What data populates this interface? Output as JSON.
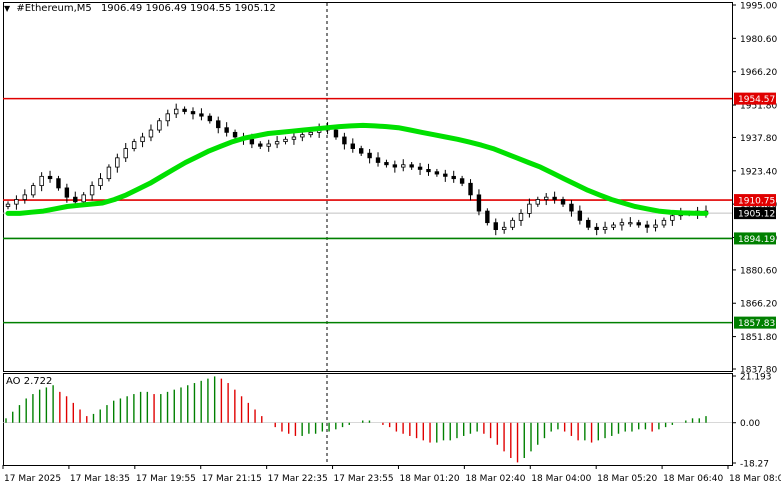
{
  "header": {
    "symbol": "#Ethereum,M5",
    "ohlc": "1906.49 1906.49 1904.55 1905.12"
  },
  "ao_header": {
    "label": "AO 2.722"
  },
  "chart_data": [
    {
      "type": "candlestick",
      "title": "#Ethereum,M5",
      "ylim": [
        1837.8,
        1995.0
      ],
      "y_ticks": [
        "1995.00",
        "1980.60",
        "1966.20",
        "1951.80",
        "1937.80",
        "1923.40",
        "1909.00",
        "1894.60",
        "1880.60",
        "1866.20",
        "1851.80",
        "1837.80"
      ],
      "x_ticks": [
        "17 Mar 2025",
        "17 Mar 18:35",
        "17 Mar 19:55",
        "17 Mar 21:15",
        "17 Mar 22:35",
        "17 Mar 23:55",
        "18 Mar 01:20",
        "18 Mar 02:40",
        "18 Mar 04:00",
        "18 Mar 05:20",
        "18 Mar 06:40",
        "18 Mar 08:00"
      ],
      "current_price": "1905.12",
      "close_series": [
        1909,
        1911,
        1913,
        1917,
        1921,
        1920,
        1916,
        1912,
        1910,
        1913,
        1917,
        1920,
        1925,
        1929,
        1933,
        1936,
        1938,
        1941,
        1945,
        1948,
        1950,
        1949,
        1948,
        1947,
        1945,
        1942,
        1940,
        1938,
        1937,
        1935,
        1934,
        1935,
        1936,
        1937,
        1938,
        1939,
        1940,
        1942,
        1941,
        1938,
        1935,
        1933,
        1931,
        1929,
        1927,
        1926,
        1925,
        1926,
        1925,
        1924,
        1923,
        1922,
        1921,
        1920,
        1918,
        1913,
        1906,
        1901,
        1898,
        1899,
        1902,
        1905,
        1909,
        1911,
        1912,
        1911,
        1909,
        1906,
        1902,
        1899,
        1898,
        1899,
        1900,
        1901,
        1901,
        1900,
        1899,
        1900,
        1902,
        1904,
        1905,
        1905,
        1906,
        1905
      ],
      "ma_line": {
        "color": "#00e000",
        "values": [
          1905.0,
          1905.0,
          1905.5,
          1906.0,
          1907.0,
          1908.0,
          1908.5,
          1909.0,
          1909.5,
          1911.0,
          1913.0,
          1915.5,
          1918.0,
          1921.0,
          1924.0,
          1927.0,
          1929.5,
          1932.0,
          1934.0,
          1936.0,
          1937.5,
          1938.5,
          1939.5,
          1940.0,
          1940.5,
          1941.0,
          1941.5,
          1942.0,
          1942.5,
          1942.8,
          1943.0,
          1942.8,
          1942.5,
          1942.0,
          1941.0,
          1940.0,
          1939.0,
          1938.0,
          1937.0,
          1935.8,
          1934.5,
          1933.0,
          1931.0,
          1929.0,
          1927.0,
          1925.0,
          1922.5,
          1920.0,
          1917.5,
          1915.0,
          1913.0,
          1911.0,
          1909.5,
          1908.0,
          1907.0,
          1906.0,
          1905.5,
          1905.2,
          1905.1,
          1905.0
        ]
      },
      "levels": [
        {
          "label": "1954.57",
          "value": 1954.57,
          "color": "#e00000"
        },
        {
          "label": "1910.75",
          "value": 1910.75,
          "color": "#e00000"
        },
        {
          "label": "1894.19",
          "value": 1894.19,
          "color": "#008000"
        },
        {
          "label": "1857.83",
          "value": 1857.83,
          "color": "#008000"
        }
      ],
      "vertical_marker": "17 Mar 23:55"
    },
    {
      "type": "bar",
      "title": "AO 2.722",
      "ylim": [
        -18.27,
        21.193
      ],
      "y_ticks": [
        "21.193",
        "0.00",
        "-18.27"
      ],
      "positive_color": "#008000",
      "negative_color": "#e00000",
      "values": [
        2,
        5,
        8,
        11,
        13,
        15,
        16,
        17,
        14,
        12,
        9,
        6,
        3,
        4,
        6,
        8,
        10,
        11,
        12,
        13,
        14,
        14,
        13,
        13,
        14,
        15,
        16,
        17,
        18,
        19,
        20,
        21,
        20,
        18,
        15,
        12,
        9,
        6,
        3,
        0,
        -2,
        -4,
        -5,
        -6,
        -6,
        -5,
        -5,
        -4,
        -4,
        -3,
        -2,
        -1,
        0,
        1,
        1,
        0,
        -1,
        -2,
        -4,
        -5,
        -6,
        -7,
        -8,
        -9,
        -9,
        -8,
        -8,
        -7,
        -6,
        -5,
        -4,
        -5,
        -7,
        -10,
        -13,
        -16,
        -18,
        -16,
        -13,
        -10,
        -7,
        -4,
        -3,
        -4,
        -6,
        -8,
        -8,
        -9,
        -8,
        -7,
        -6,
        -5,
        -4,
        -4,
        -3,
        -3,
        -4,
        -3,
        -2,
        -1,
        0,
        1,
        2,
        2,
        3
      ]
    }
  ]
}
